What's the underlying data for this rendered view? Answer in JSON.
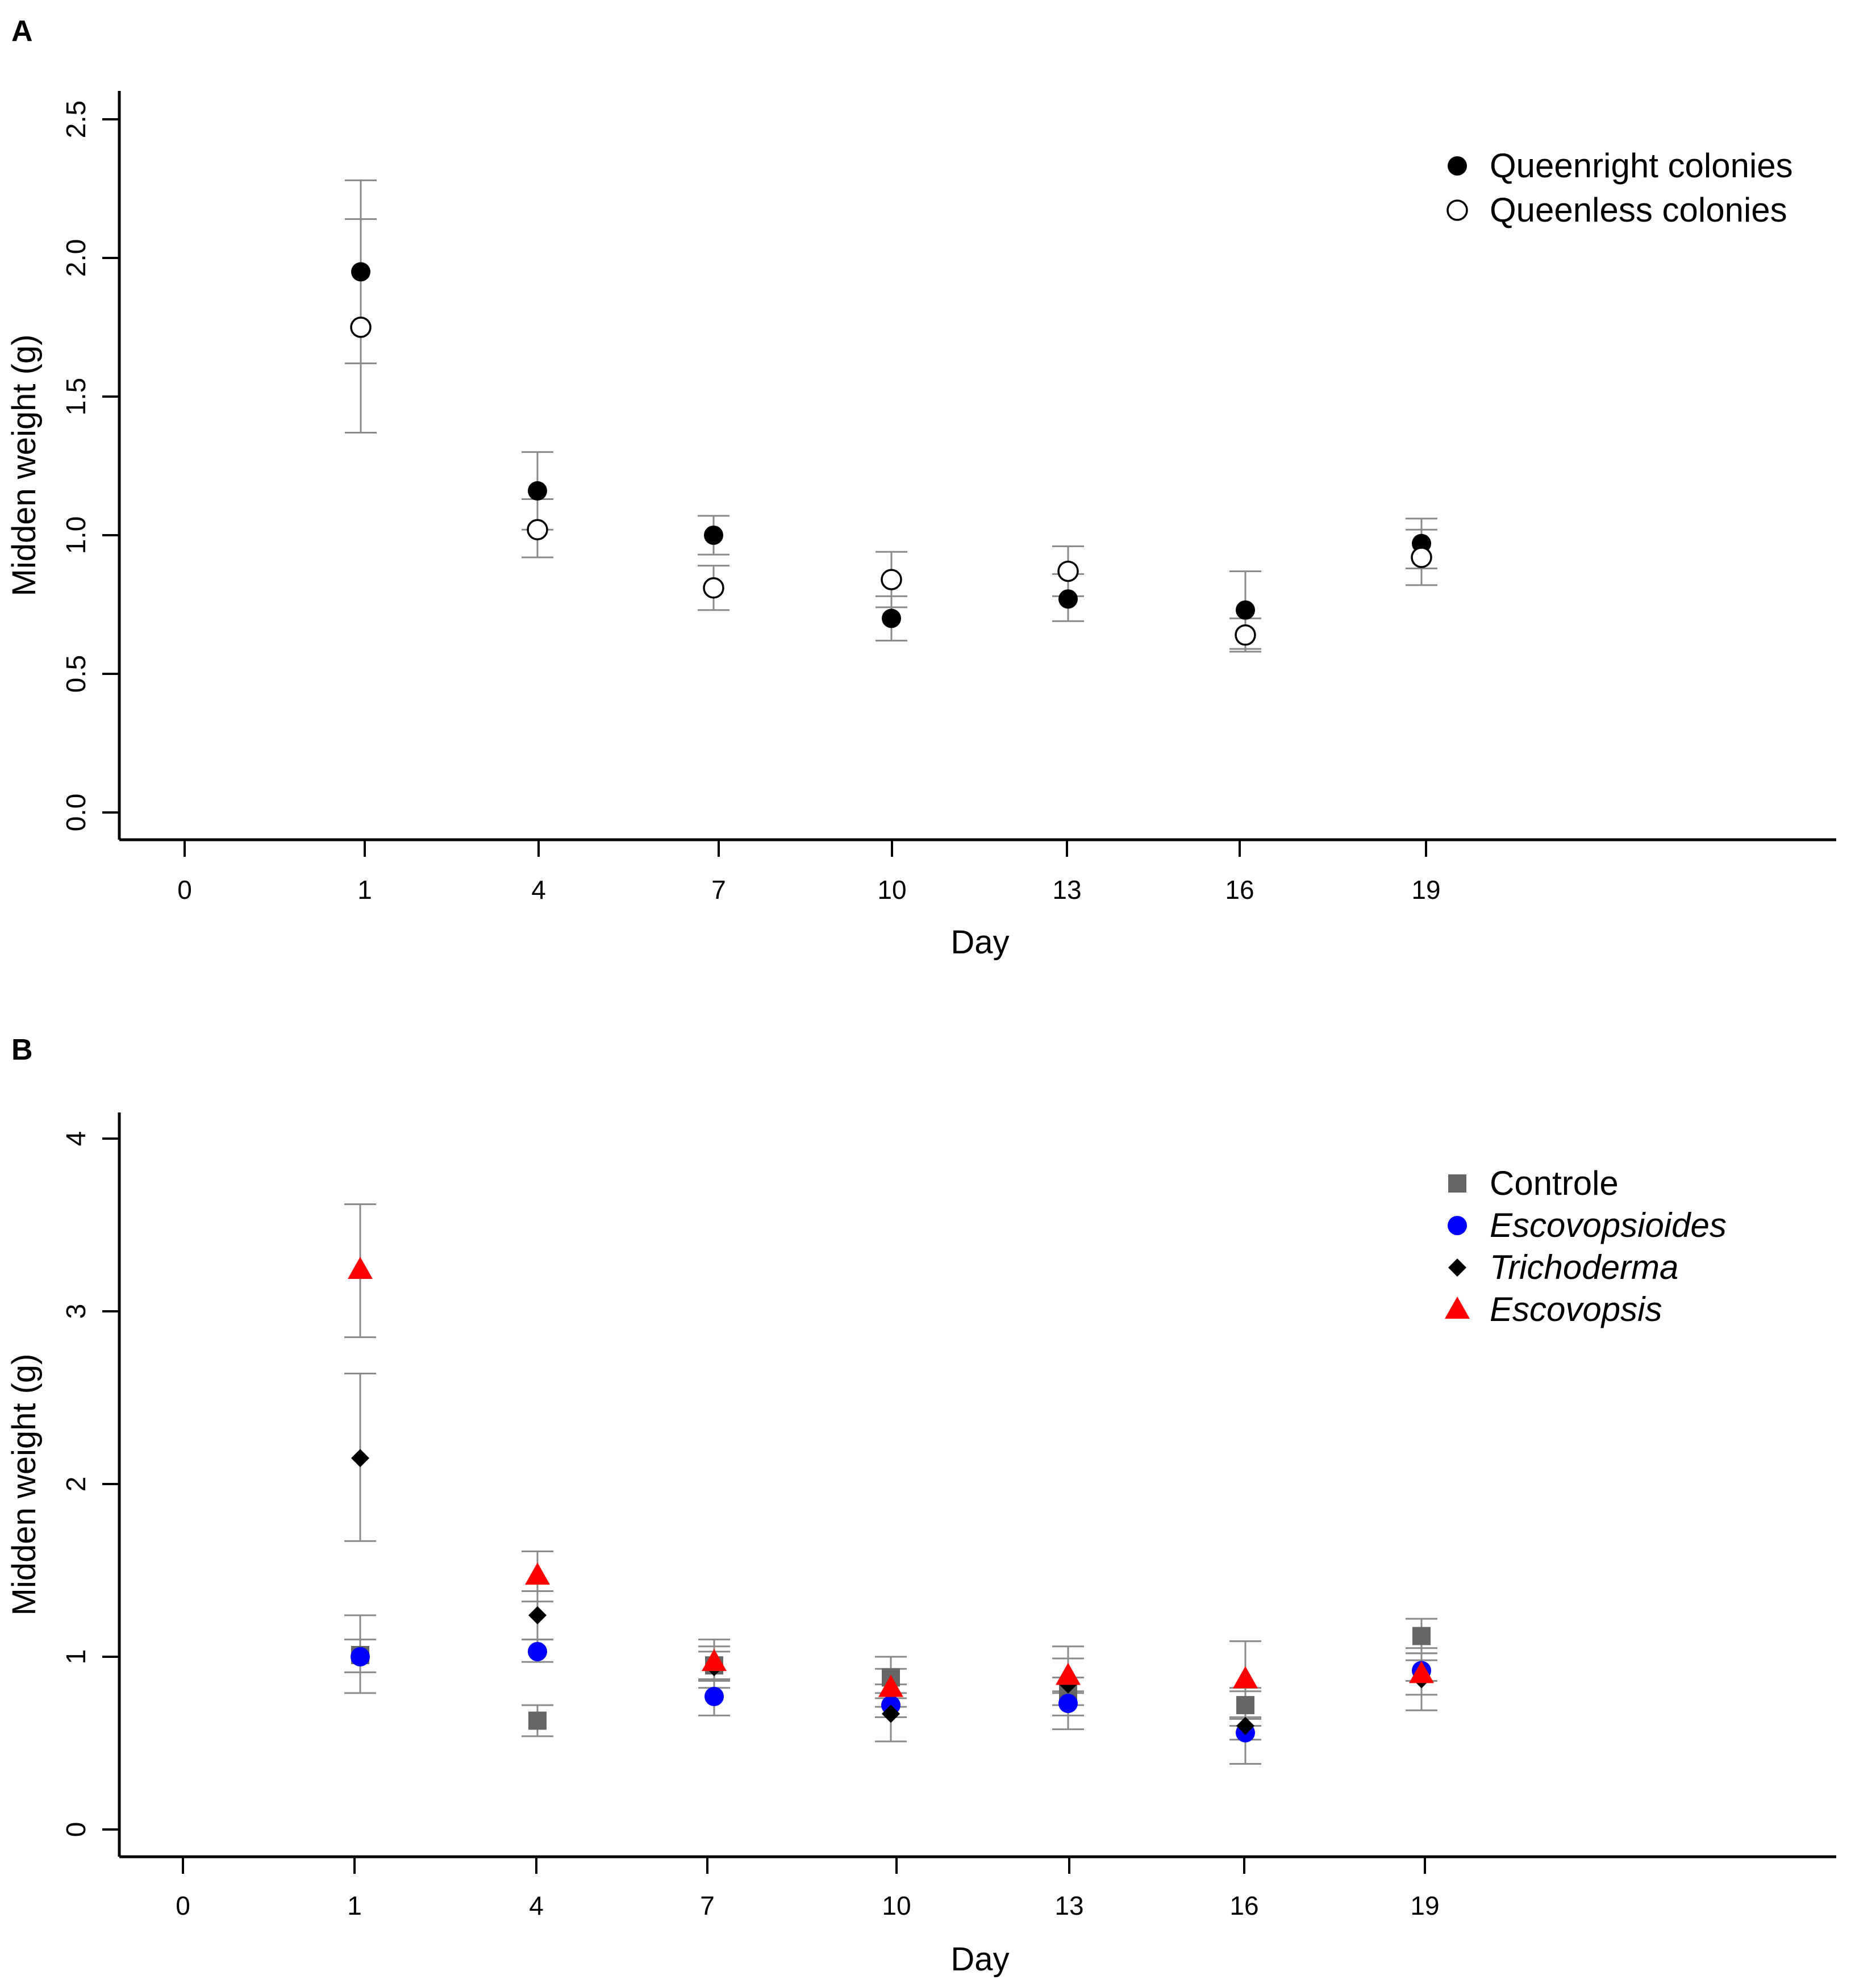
{
  "chart_data": [
    {
      "panel": "A",
      "type": "scatter",
      "title": "",
      "xlabel": "Day",
      "ylabel": "Midden weight (g)",
      "x_ticks": [
        "0",
        "1",
        "4",
        "7",
        "10",
        "13",
        "16",
        "19"
      ],
      "y_ticks": [
        "0.0",
        "0.5",
        "1.0",
        "1.5",
        "2.0",
        "2.5"
      ],
      "ylim": [
        0,
        2.5
      ],
      "legend_position": "top-right",
      "error_bars": true,
      "series": [
        {
          "name": "Queenright colonies",
          "marker": "filled-circle",
          "color": "#000000",
          "days": [
            "1",
            "4",
            "7",
            "10",
            "13",
            "16",
            "19"
          ],
          "values": [
            1.95,
            1.16,
            1.0,
            0.7,
            0.77,
            0.73,
            0.97
          ],
          "err_low": [
            1.62,
            1.02,
            0.93,
            0.62,
            0.69,
            0.59,
            0.88
          ],
          "err_high": [
            2.28,
            1.3,
            1.07,
            0.78,
            0.86,
            0.87,
            1.06
          ]
        },
        {
          "name": "Queenless colonies",
          "marker": "open-circle",
          "color": "#000000",
          "days": [
            "1",
            "4",
            "7",
            "10",
            "13",
            "16",
            "19"
          ],
          "values": [
            1.75,
            1.02,
            0.81,
            0.84,
            0.87,
            0.64,
            0.92
          ],
          "err_low": [
            1.37,
            0.92,
            0.73,
            0.74,
            0.78,
            0.58,
            0.82
          ],
          "err_high": [
            2.14,
            1.13,
            0.89,
            0.94,
            0.96,
            0.7,
            1.02
          ]
        }
      ]
    },
    {
      "panel": "B",
      "type": "scatter",
      "title": "",
      "xlabel": "Day",
      "ylabel": "Midden weight (g)",
      "x_ticks": [
        "0",
        "1",
        "4",
        "7",
        "10",
        "13",
        "16",
        "19"
      ],
      "y_ticks": [
        "0",
        "1",
        "2",
        "3",
        "4"
      ],
      "ylim": [
        0,
        4
      ],
      "legend_position": "top-right",
      "error_bars": true,
      "series": [
        {
          "name": "Controle",
          "italic": false,
          "marker": "square",
          "color": "#666666",
          "days": [
            "1",
            "4",
            "7",
            "10",
            "13",
            "16",
            "19"
          ],
          "values": [
            1.01,
            0.63,
            0.95,
            0.88,
            0.8,
            0.72,
            1.12
          ],
          "err_low": [
            0.91,
            0.54,
            0.87,
            0.76,
            0.72,
            0.64,
            1.02
          ],
          "err_high": [
            1.1,
            0.72,
            1.03,
            1.0,
            0.88,
            0.8,
            1.22
          ]
        },
        {
          "name": "Escovopsioides",
          "italic": true,
          "marker": "circle",
          "color": "#0000ff",
          "days": [
            "1",
            "4",
            "7",
            "10",
            "13",
            "16",
            "19"
          ],
          "values": [
            1.0,
            1.03,
            0.77,
            0.72,
            0.73,
            0.56,
            0.92
          ],
          "err_low": [
            0.79,
            0.97,
            0.66,
            0.65,
            0.66,
            0.52,
            0.86
          ],
          "err_high": [
            1.24,
            1.1,
            0.86,
            0.79,
            0.8,
            0.6,
            0.98
          ]
        },
        {
          "name": "Trichoderma",
          "italic": true,
          "marker": "diamond",
          "color": "#000000",
          "days": [
            "1",
            "4",
            "7",
            "10",
            "13",
            "16",
            "19"
          ],
          "values": [
            2.15,
            1.24,
            0.94,
            0.67,
            0.84,
            0.6,
            0.87
          ],
          "err_low": [
            1.67,
            1.1,
            0.82,
            0.51,
            0.58,
            0.38,
            0.69
          ],
          "err_high": [
            2.64,
            1.38,
            1.06,
            0.84,
            1.06,
            0.82,
            1.05
          ]
        },
        {
          "name": "Escovopsis",
          "italic": true,
          "marker": "triangle",
          "color": "#ff0000",
          "days": [
            "1",
            "4",
            "7",
            "10",
            "13",
            "16",
            "19"
          ],
          "values": [
            3.24,
            1.47,
            0.97,
            0.82,
            0.89,
            0.87,
            0.9
          ],
          "err_low": [
            2.85,
            1.32,
            0.87,
            0.71,
            0.79,
            0.65,
            0.78
          ],
          "err_high": [
            3.62,
            1.61,
            1.1,
            0.93,
            0.99,
            1.09,
            1.02
          ]
        }
      ]
    }
  ]
}
